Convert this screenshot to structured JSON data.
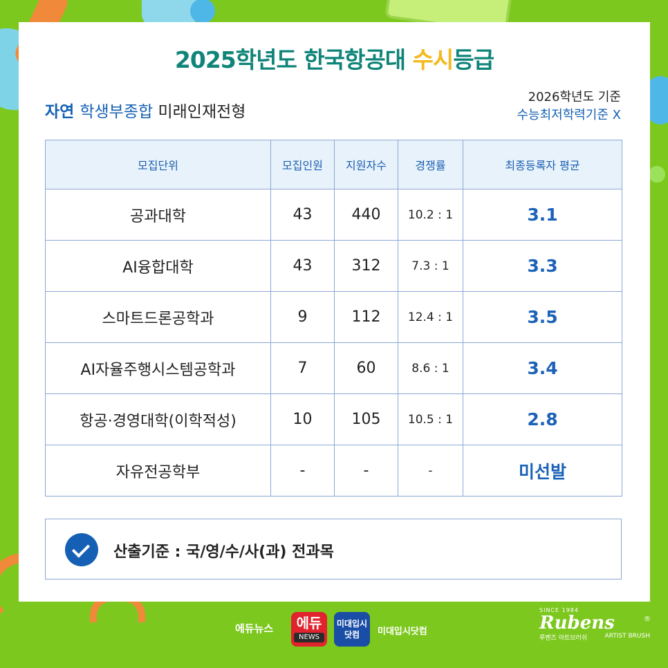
{
  "title": {
    "part1": "2025학년도 한국항공대 ",
    "highlight": "수시",
    "part2": "등급"
  },
  "subtitle": {
    "type": "자연",
    "track": "학생부종합",
    "name": " 미래인재전형"
  },
  "basis": {
    "line1": "2026학년도 기준",
    "line2": "수능최저학력기준 X"
  },
  "table": {
    "headers": [
      "모집단위",
      "모집인원",
      "지원자수",
      "경쟁률",
      "최종등록자 평균"
    ],
    "rows": [
      {
        "unit": "공과대학",
        "quota": "43",
        "applicants": "440",
        "rate": "10.2 : 1",
        "avg": "3.1"
      },
      {
        "unit": "AI융합대학",
        "quota": "43",
        "applicants": "312",
        "rate": "7.3 : 1",
        "avg": "3.3"
      },
      {
        "unit": "스마트드론공학과",
        "quota": "9",
        "applicants": "112",
        "rate": "12.4 : 1",
        "avg": "3.5"
      },
      {
        "unit": "AI자율주행시스템공학과",
        "quota": "7",
        "applicants": "60",
        "rate": "8.6 : 1",
        "avg": "3.4"
      },
      {
        "unit": "항공·경영대학(이학적성)",
        "quota": "10",
        "applicants": "105",
        "rate": "10.5 : 1",
        "avg": "2.8"
      },
      {
        "unit": "자유전공학부",
        "quota": "-",
        "applicants": "-",
        "rate": "-",
        "avg": "미선발"
      }
    ]
  },
  "criteria": {
    "text": "산출기준 : 국/영/수/사(과) 전과목",
    "icon": "check-circle-icon"
  },
  "footer": {
    "edunews": "에듀뉴스",
    "edu_logo_top": "에듀",
    "edu_logo_bottom": "NEWS",
    "mi_logo_line1": "미대입시",
    "mi_logo_line2": "닷컴",
    "mi_site": "미대입시닷컴",
    "rubens_since": "SINCE 1984",
    "rubens_name": "Rubens",
    "rubens_reg": "®",
    "rubens_kr": "루벤즈 아트브러쉬",
    "rubens_en": "ARTIST BRUSH"
  },
  "colors": {
    "background": "#7cc81e",
    "title": "#0f8478",
    "highlight": "#f4b91c",
    "accent": "#1560b4"
  }
}
